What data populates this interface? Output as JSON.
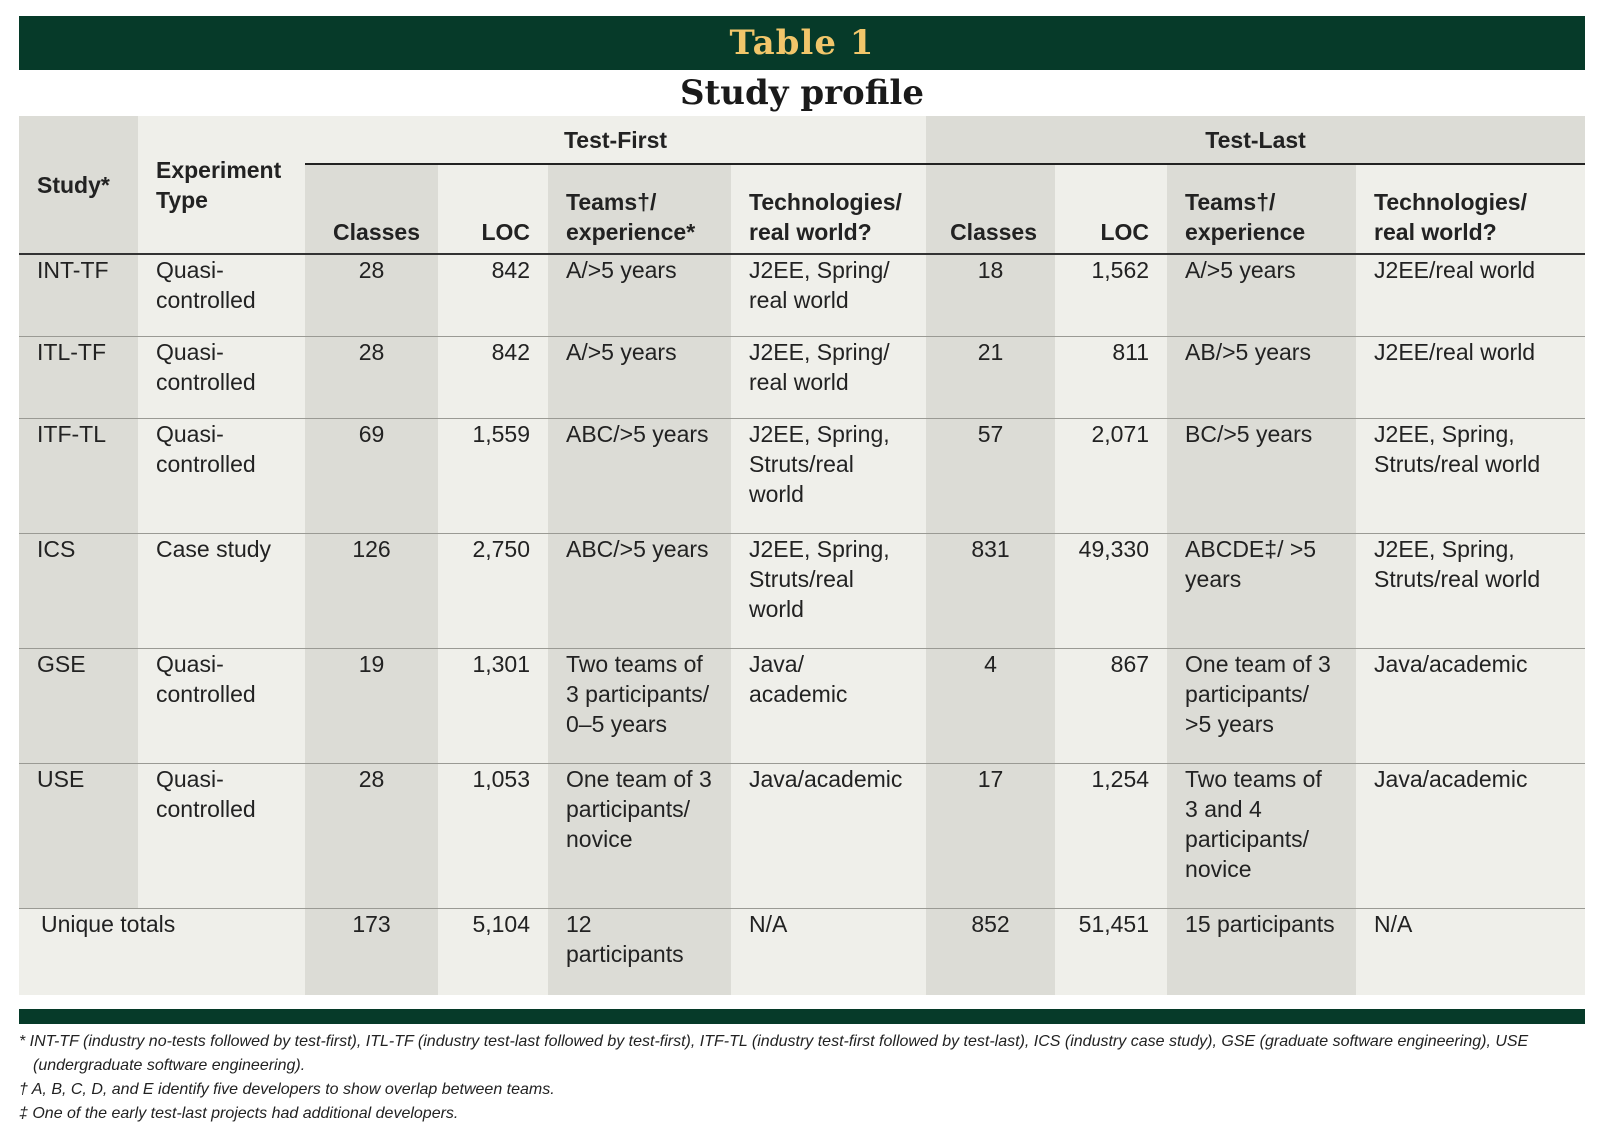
{
  "title": "Table 1",
  "subtitle": "Study profile",
  "header": {
    "study": "Study*",
    "experiment_type": "Experiment Type",
    "test_first": "Test-First",
    "test_last": "Test-Last",
    "classes": "Classes",
    "loc": "LOC",
    "teams_tf": "Teams†/ experience*",
    "tech": "Technologies/ real world?",
    "teams_tl": "Teams†/ experience"
  },
  "rows": [
    {
      "study": "INT-TF",
      "type": "Quasi-controlled",
      "tf_classes": "28",
      "tf_loc": "842",
      "tf_teams": "A/>5 years",
      "tf_tech": "J2EE, Spring/ real world",
      "tl_classes": "18",
      "tl_loc": "1,562",
      "tl_teams": "A/>5 years",
      "tl_tech": "J2EE/real world"
    },
    {
      "study": "ITL-TF",
      "type": "Quasi-controlled",
      "tf_classes": "28",
      "tf_loc": "842",
      "tf_teams": "A/>5 years",
      "tf_tech": "J2EE, Spring/ real world",
      "tl_classes": "21",
      "tl_loc": "811",
      "tl_teams": "AB/>5 years",
      "tl_tech": "J2EE/real world"
    },
    {
      "study": "ITF-TL",
      "type": "Quasi-controlled",
      "tf_classes": "69",
      "tf_loc": "1,559",
      "tf_teams": "ABC/>5 years",
      "tf_tech": "J2EE, Spring, Struts/real world",
      "tl_classes": "57",
      "tl_loc": "2,071",
      "tl_teams": "BC/>5 years",
      "tl_tech": "J2EE, Spring, Struts/real world"
    },
    {
      "study": "ICS",
      "type": "Case study",
      "tf_classes": "126",
      "tf_loc": "2,750",
      "tf_teams": "ABC/>5 years",
      "tf_tech": "J2EE, Spring, Struts/real world",
      "tl_classes": "831",
      "tl_loc": "49,330",
      "tl_teams": "ABCDE‡/ >5 years",
      "tl_tech": "J2EE, Spring, Struts/real world"
    },
    {
      "study": "GSE",
      "type": "Quasi-controlled",
      "tf_classes": "19",
      "tf_loc": "1,301",
      "tf_teams": "Two teams of 3 participants/ 0–5 years",
      "tf_tech": "Java/ academic",
      "tl_classes": "4",
      "tl_loc": "867",
      "tl_teams": "One team of 3 participants/ >5 years",
      "tl_tech": "Java/academic"
    },
    {
      "study": "USE",
      "type": "Quasi-controlled",
      "tf_classes": "28",
      "tf_loc": "1,053",
      "tf_teams": "One team of 3 participants/ novice",
      "tf_tech": "Java/academic",
      "tl_classes": "17",
      "tl_loc": "1,254",
      "tl_teams": "Two teams of 3 and 4 participants/ novice",
      "tl_tech": "Java/academic"
    }
  ],
  "totals": {
    "label": "Unique totals",
    "tf_classes": "173",
    "tf_loc": "5,104",
    "tf_teams": "12 participants",
    "tf_tech": "N/A",
    "tl_classes": "852",
    "tl_loc": "51,451",
    "tl_teams": "15 participants",
    "tl_tech": "N/A"
  },
  "footnotes": [
    "* INT-TF (industry no-tests followed by test-first), ITL-TF (industry test-last followed by test-first), ITF-TL (industry test-first followed by test-last), ICS (industry case study), GSE (graduate software engineering), USE (undergraduate software engineering).",
    "† A, B, C, D, and E identify five developers to show overlap between teams.",
    "‡ One of the early test-last projects had additional developers."
  ],
  "colors": {
    "banner": "#063a29",
    "title_text": "#f1c66a",
    "gray_column": "#dcdcd6",
    "light_column": "#efefea"
  }
}
